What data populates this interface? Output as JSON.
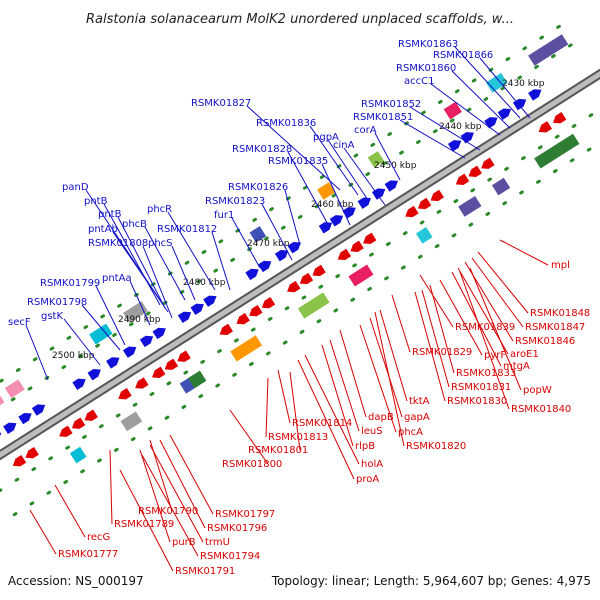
{
  "title": "Ralstonia solanacearum MolK2 unordered unplaced scaffolds, w...",
  "footer": {
    "accession": "Accession: NS_000197",
    "summary": "Topology: linear; Length: 5,964,607 bp; Genes: 4,975"
  },
  "colors": {
    "forward_gene": "#1010d8",
    "reverse_gene": "#e00000",
    "forward_label": "#1010c8",
    "reverse_label": "#d80000",
    "backbone": "#888888",
    "tick_dot": "#2a8a2a",
    "orf_green": "#1e8a1e"
  },
  "ticks": [
    "2430 kbp",
    "2440 kbp",
    "2450 kbp",
    "2460 kbp",
    "2470 kbp",
    "2480 kbp",
    "2490 kbp",
    "2500 kbp"
  ],
  "forward_labels": [
    "RSMK01863",
    "RSMK01866",
    "RSMK01860",
    "accC1",
    "RSMK01852",
    "RSMK01851",
    "RSMK01827",
    "RSMK01836",
    "pgpA",
    "corA",
    "cinA",
    "RSMK01828",
    "RSMK01835",
    "panD",
    "phcR",
    "RSMK01826",
    "RSMK01823",
    "pntB",
    "pntB",
    "phcB",
    "fur1",
    "pntAb",
    "RSMK01812",
    "RSMK01808",
    "phcS",
    "pntAa",
    "RSMK01799",
    "RSMK01798",
    "gstK",
    "secF"
  ],
  "reverse_labels": [
    "mpl",
    "RSMK01848",
    "RSMK01847",
    "RSMK01846",
    "RSMK01839",
    "aroE1",
    "mtgA",
    "pyrF",
    "RSMK01829",
    "RSMK01833",
    "popW",
    "RSMK01831",
    "RSMK01830",
    "RSMK01840",
    "tktA",
    "gapA",
    "phcA",
    "dapB",
    "RSMK01820",
    "leuS",
    "RSMK01814",
    "rlpB",
    "RSMK01813",
    "RSMK01801",
    "holA",
    "proA",
    "RSMK01800",
    "RSMK01797",
    "RSMK01790",
    "RSMK01796",
    "RSMK01789",
    "trmU",
    "purB",
    "RSMK01794",
    "RSMK01791",
    "recG",
    "RSMK01777"
  ]
}
